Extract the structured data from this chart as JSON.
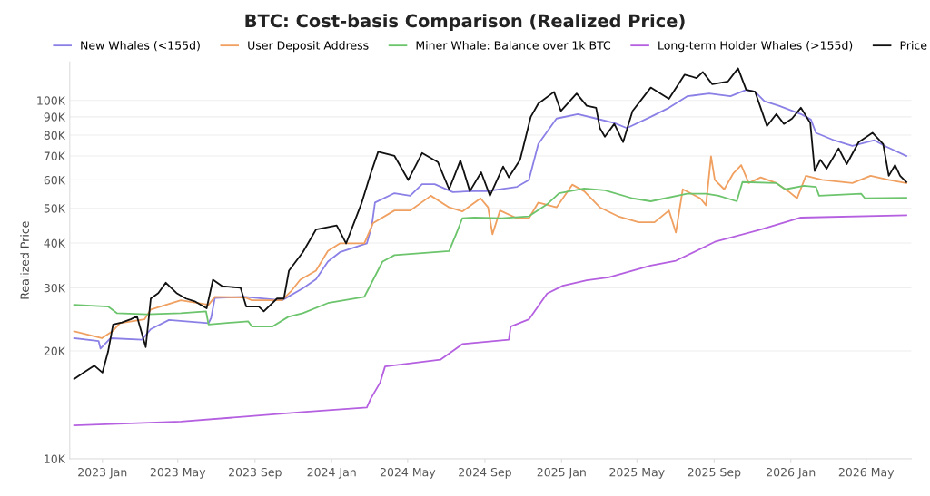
{
  "chart_data": {
    "type": "line",
    "title": "BTC: Cost-basis Comparison (Realized Price)",
    "ylabel": "Realized Price",
    "log": true,
    "grid": "y",
    "legend": "top",
    "line_style": "solid",
    "marker": "none",
    "xlim": [
      "2022-11-10",
      "2026-07-12"
    ],
    "ylim": [
      10000,
      128000
    ],
    "xticks": [
      {
        "value": "2023-01-01",
        "label": "2023 Jan"
      },
      {
        "value": "2023-05-01",
        "label": "2023 May"
      },
      {
        "value": "2023-09-01",
        "label": "2023 Sep"
      },
      {
        "value": "2024-01-01",
        "label": "2024 Jan"
      },
      {
        "value": "2024-05-01",
        "label": "2024 May"
      },
      {
        "value": "2024-09-01",
        "label": "2024 Sep"
      },
      {
        "value": "2025-01-01",
        "label": "2025 Jan"
      },
      {
        "value": "2025-05-01",
        "label": "2025 May"
      },
      {
        "value": "2025-09-01",
        "label": "2025 Sep"
      },
      {
        "value": "2026-01-01",
        "label": "2026 Jan"
      },
      {
        "value": "2026-05-01",
        "label": "2026 May"
      }
    ],
    "yticks": [
      {
        "value": 10000,
        "label": "10K"
      },
      {
        "value": 20000,
        "label": "20K"
      },
      {
        "value": 30000,
        "label": "30K"
      },
      {
        "value": 40000,
        "label": "40K"
      },
      {
        "value": 50000,
        "label": "50K"
      },
      {
        "value": 60000,
        "label": "60K"
      },
      {
        "value": 70000,
        "label": "70K"
      },
      {
        "value": 80000,
        "label": "80K"
      },
      {
        "value": 90000,
        "label": "90K"
      },
      {
        "value": 100000,
        "label": "100K"
      }
    ],
    "series": [
      {
        "name": "New Whales (<155d)",
        "color": "#8a80e6",
        "x": [
          "2022-11-17",
          "2022-12-26",
          "2022-12-29",
          "2023-01-14",
          "2023-03-05",
          "2023-03-19",
          "2023-04-17",
          "2023-06-19",
          "2023-06-23",
          "2023-06-29",
          "2023-08-16",
          "2023-10-14",
          "2023-11-16",
          "2023-12-07",
          "2023-12-26",
          "2024-01-14",
          "2024-02-26",
          "2024-03-05",
          "2024-03-10",
          "2024-04-10",
          "2024-05-05",
          "2024-05-24",
          "2024-06-13",
          "2024-07-12",
          "2024-08-10",
          "2024-09-03",
          "2024-10-22",
          "2024-11-10",
          "2024-11-25",
          "2024-12-24",
          "2025-01-27",
          "2025-02-25",
          "2025-03-26",
          "2025-04-15",
          "2025-05-23",
          "2025-06-21",
          "2025-07-20",
          "2025-08-24",
          "2025-09-27",
          "2025-10-22",
          "2025-11-05",
          "2025-11-20",
          "2025-12-13",
          "2026-01-17",
          "2026-02-02",
          "2026-02-10",
          "2026-03-11",
          "2026-04-09",
          "2026-05-14",
          "2026-06-02",
          "2026-07-04"
        ],
        "values": [
          21700,
          21300,
          20300,
          21700,
          21500,
          23000,
          24400,
          23900,
          24700,
          28100,
          28300,
          27700,
          29900,
          31700,
          35500,
          37700,
          39900,
          44800,
          51900,
          55100,
          54200,
          58400,
          58400,
          55500,
          55800,
          55800,
          57400,
          60000,
          75600,
          89000,
          91600,
          89000,
          86500,
          83700,
          90000,
          95400,
          102700,
          104500,
          102700,
          107000,
          105800,
          99500,
          96600,
          91600,
          88400,
          81200,
          77400,
          74700,
          77400,
          74300,
          70000
        ]
      },
      {
        "name": "User Deposit Address",
        "color": "#f0a060",
        "x": [
          "2022-11-17",
          "2022-12-31",
          "2023-01-17",
          "2023-01-29",
          "2023-03-09",
          "2023-03-19",
          "2023-05-06",
          "2023-06-19",
          "2023-06-29",
          "2023-08-16",
          "2023-08-27",
          "2023-10-14",
          "2023-10-28",
          "2023-11-12",
          "2023-12-07",
          "2023-12-26",
          "2024-01-14",
          "2024-02-22",
          "2024-03-07",
          "2024-04-10",
          "2024-05-05",
          "2024-06-07",
          "2024-07-06",
          "2024-07-27",
          "2024-08-10",
          "2024-08-25",
          "2024-09-06",
          "2024-09-13",
          "2024-09-25",
          "2024-10-22",
          "2024-11-10",
          "2024-11-25",
          "2024-12-24",
          "2025-01-18",
          "2025-02-06",
          "2025-03-03",
          "2025-04-01",
          "2025-05-04",
          "2025-05-29",
          "2025-06-21",
          "2025-07-02",
          "2025-07-13",
          "2025-08-10",
          "2025-08-19",
          "2025-08-27",
          "2025-09-02",
          "2025-09-17",
          "2025-10-01",
          "2025-10-14",
          "2025-10-26",
          "2025-11-14",
          "2025-12-09",
          "2025-12-28",
          "2026-01-11",
          "2026-01-25",
          "2026-02-20",
          "2026-04-09",
          "2026-05-08",
          "2026-06-06",
          "2026-07-04"
        ],
        "values": [
          22700,
          21700,
          22700,
          23900,
          24500,
          26100,
          27700,
          26900,
          28300,
          28200,
          27700,
          27700,
          29300,
          31600,
          33500,
          38000,
          39900,
          39900,
          45500,
          49300,
          49300,
          54200,
          50300,
          49000,
          51000,
          53300,
          50300,
          42300,
          49300,
          46900,
          46900,
          51900,
          50300,
          58200,
          55800,
          50300,
          47500,
          45700,
          45700,
          49300,
          42800,
          56500,
          53300,
          51000,
          69800,
          60000,
          56500,
          62400,
          66000,
          58800,
          61000,
          58800,
          55800,
          53300,
          61600,
          60000,
          58800,
          61600,
          60000,
          58800
        ]
      },
      {
        "name": "Miner Whale: Balance over 1k BTC",
        "color": "#6cc46c",
        "x": [
          "2022-11-17",
          "2023-01-10",
          "2023-01-24",
          "2023-03-13",
          "2023-05-06",
          "2023-06-15",
          "2023-06-19",
          "2023-08-21",
          "2023-08-27",
          "2023-09-29",
          "2023-10-24",
          "2023-11-16",
          "2023-12-26",
          "2024-02-22",
          "2024-02-29",
          "2024-03-22",
          "2024-04-10",
          "2024-07-06",
          "2024-07-17",
          "2024-07-27",
          "2024-08-15",
          "2024-09-28",
          "2024-11-10",
          "2024-12-09",
          "2024-12-28",
          "2025-02-06",
          "2025-03-11",
          "2025-04-24",
          "2025-05-23",
          "2025-07-20",
          "2025-08-19",
          "2025-09-08",
          "2025-10-07",
          "2025-10-16",
          "2025-12-09",
          "2025-12-23",
          "2026-01-22",
          "2026-02-10",
          "2026-02-15",
          "2026-04-23",
          "2026-04-29",
          "2026-07-04"
        ],
        "values": [
          26900,
          26600,
          25500,
          25300,
          25500,
          25800,
          23700,
          24200,
          23400,
          23400,
          24900,
          25500,
          27200,
          28300,
          29900,
          35500,
          37000,
          38000,
          42300,
          46900,
          47100,
          46900,
          47500,
          51300,
          55100,
          56800,
          56100,
          53300,
          52300,
          54900,
          54900,
          54200,
          52300,
          59200,
          58800,
          56500,
          57800,
          57400,
          54200,
          54900,
          53300,
          53500
        ]
      },
      {
        "name": "Long-term Holder Whales (>155d)",
        "color": "#b560e0",
        "x": [
          "2022-11-17",
          "2023-05-06",
          "2023-08-12",
          "2023-11-16",
          "2024-02-26",
          "2024-03-03",
          "2024-03-18",
          "2024-03-26",
          "2024-06-22",
          "2024-07-17",
          "2024-07-27",
          "2024-10-09",
          "2024-10-12",
          "2024-11-10",
          "2024-12-09",
          "2025-01-03",
          "2025-02-10",
          "2025-03-17",
          "2025-05-23",
          "2025-07-02",
          "2025-09-02",
          "2025-11-14",
          "2026-01-17",
          "2026-07-04"
        ],
        "values": [
          12400,
          12700,
          13100,
          13500,
          13900,
          14700,
          16300,
          18100,
          18900,
          20300,
          20900,
          21500,
          23400,
          24500,
          28900,
          30400,
          31500,
          32100,
          34600,
          35700,
          40300,
          43600,
          47100,
          47800
        ]
      },
      {
        "name": "Price",
        "color": "#111111",
        "x": [
          "2022-11-17",
          "2022-12-04",
          "2022-12-19",
          "2023-01-01",
          "2023-01-10",
          "2023-01-18",
          "2023-02-01",
          "2023-02-15",
          "2023-02-25",
          "2023-03-11",
          "2023-03-19",
          "2023-03-31",
          "2023-04-12",
          "2023-04-29",
          "2023-05-14",
          "2023-05-28",
          "2023-06-16",
          "2023-06-26",
          "2023-07-11",
          "2023-08-09",
          "2023-08-18",
          "2023-09-07",
          "2023-09-15",
          "2023-10-06",
          "2023-10-17",
          "2023-10-25",
          "2023-11-16",
          "2023-12-07",
          "2024-01-09",
          "2024-01-24",
          "2024-02-18",
          "2024-03-03",
          "2024-03-15",
          "2024-04-10",
          "2024-05-02",
          "2024-05-24",
          "2024-06-18",
          "2024-07-06",
          "2024-07-24",
          "2024-08-08",
          "2024-08-26",
          "2024-09-09",
          "2024-09-30",
          "2024-10-09",
          "2024-10-27",
          "2024-11-13",
          "2024-11-25",
          "2024-12-20",
          "2024-12-31",
          "2025-01-25",
          "2025-02-10",
          "2025-02-25",
          "2025-03-03",
          "2025-03-11",
          "2025-03-26",
          "2025-04-09",
          "2025-04-24",
          "2025-05-23",
          "2025-06-21",
          "2025-07-16",
          "2025-08-04",
          "2025-08-14",
          "2025-08-29",
          "2025-09-23",
          "2025-10-09",
          "2025-10-22",
          "2025-11-05",
          "2025-11-14",
          "2025-11-24",
          "2025-12-09",
          "2025-12-21",
          "2026-01-03",
          "2026-01-17",
          "2026-02-01",
          "2026-02-08",
          "2026-02-17",
          "2026-02-27",
          "2026-03-18",
          "2026-03-31",
          "2026-04-19",
          "2026-05-11",
          "2026-05-28",
          "2026-06-06",
          "2026-06-16",
          "2026-06-24",
          "2026-07-04"
        ],
        "values": [
          16700,
          17500,
          18200,
          17400,
          19900,
          23700,
          24000,
          24500,
          25000,
          20500,
          28000,
          29000,
          31000,
          29000,
          28000,
          27500,
          26300,
          31600,
          30300,
          30000,
          26600,
          26600,
          25800,
          28000,
          28000,
          33500,
          37700,
          43600,
          44800,
          39900,
          51900,
          62400,
          71900,
          70000,
          60000,
          71300,
          67300,
          56500,
          68000,
          55800,
          63000,
          54200,
          65400,
          61000,
          68300,
          90000,
          98000,
          105600,
          93400,
          104500,
          96600,
          95400,
          83700,
          79200,
          86000,
          76500,
          93400,
          108600,
          101000,
          118000,
          115500,
          120000,
          111000,
          113000,
          122900,
          107000,
          105800,
          95400,
          84800,
          91600,
          86000,
          89000,
          95400,
          86500,
          63500,
          68300,
          64500,
          73500,
          66400,
          76500,
          81200,
          75600,
          61600,
          66000,
          61600,
          59200
        ]
      }
    ]
  }
}
